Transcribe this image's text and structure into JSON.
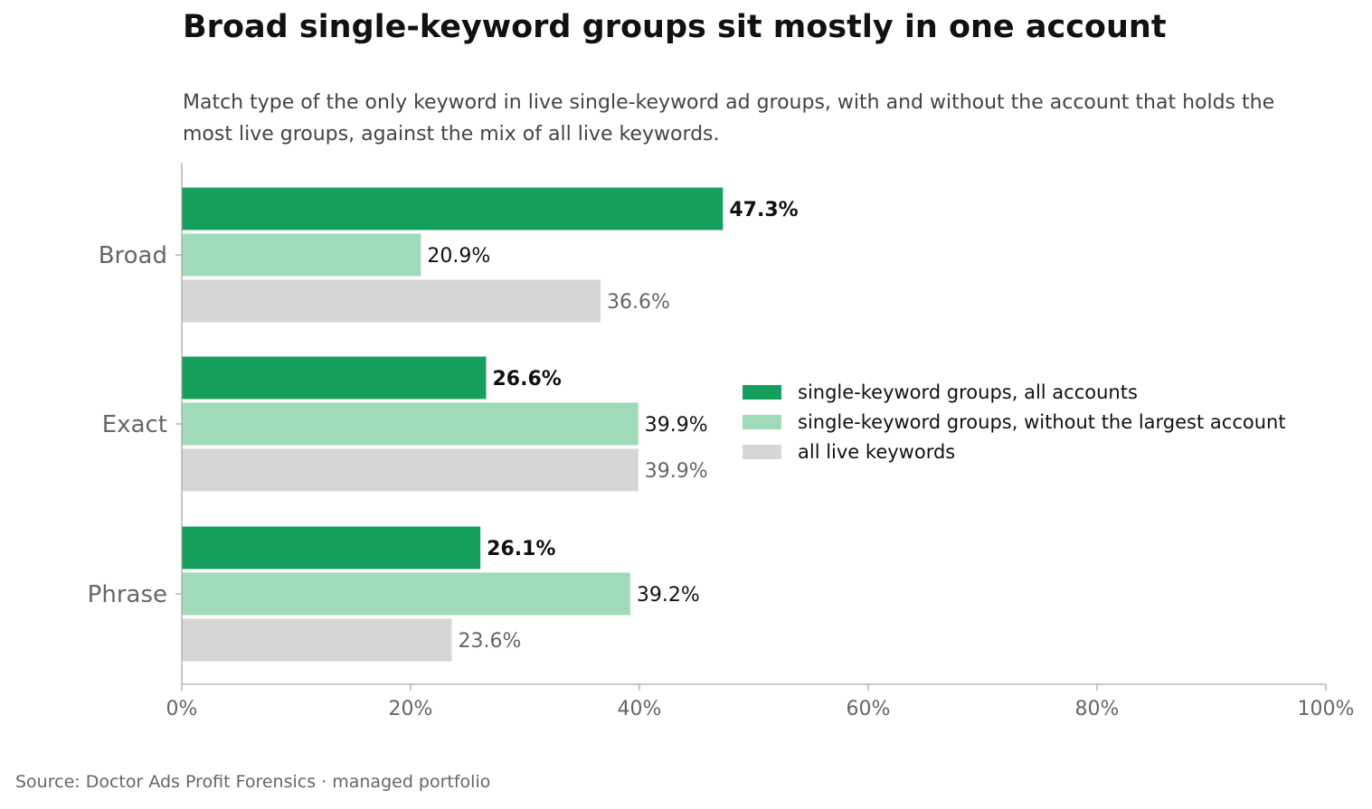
{
  "title": "Broad single-keyword groups sit mostly in one account",
  "subtitle": "Match type of the only keyword in live single-keyword ad groups, with and without the account that holds the most live groups, against the mix of all live keywords.",
  "source": "Source: Doctor Ads Profit Forensics · managed portfolio",
  "colors": {
    "all_accounts": "#14a05c",
    "without_largest": "#9fdbb8",
    "all_live_keywords": "#d6d6d6",
    "axis": "#aaaaaa",
    "category_label": "#666666",
    "value_dark": "#111111",
    "value_grey": "#666666"
  },
  "chart_data": {
    "type": "bar",
    "orientation": "horizontal",
    "categories": [
      "Broad",
      "Exact",
      "Phrase"
    ],
    "series": [
      {
        "name": "single-keyword groups, all accounts",
        "values": [
          47.3,
          26.6,
          26.1
        ],
        "labels": [
          "47.3%",
          "26.6%",
          "26.1%"
        ]
      },
      {
        "name": "single-keyword groups, without the largest account",
        "values": [
          20.9,
          39.9,
          39.2
        ],
        "labels": [
          "20.9%",
          "39.9%",
          "39.2%"
        ]
      },
      {
        "name": "all live keywords",
        "values": [
          36.6,
          39.9,
          23.6
        ],
        "labels": [
          "36.6%",
          "39.9%",
          "23.6%"
        ]
      }
    ],
    "xlim": [
      0,
      100
    ],
    "xticks": [
      "0%",
      "20%",
      "40%",
      "60%",
      "80%",
      "100%"
    ],
    "xlabel": "",
    "ylabel": "",
    "grid": false,
    "legend_position": "right"
  }
}
